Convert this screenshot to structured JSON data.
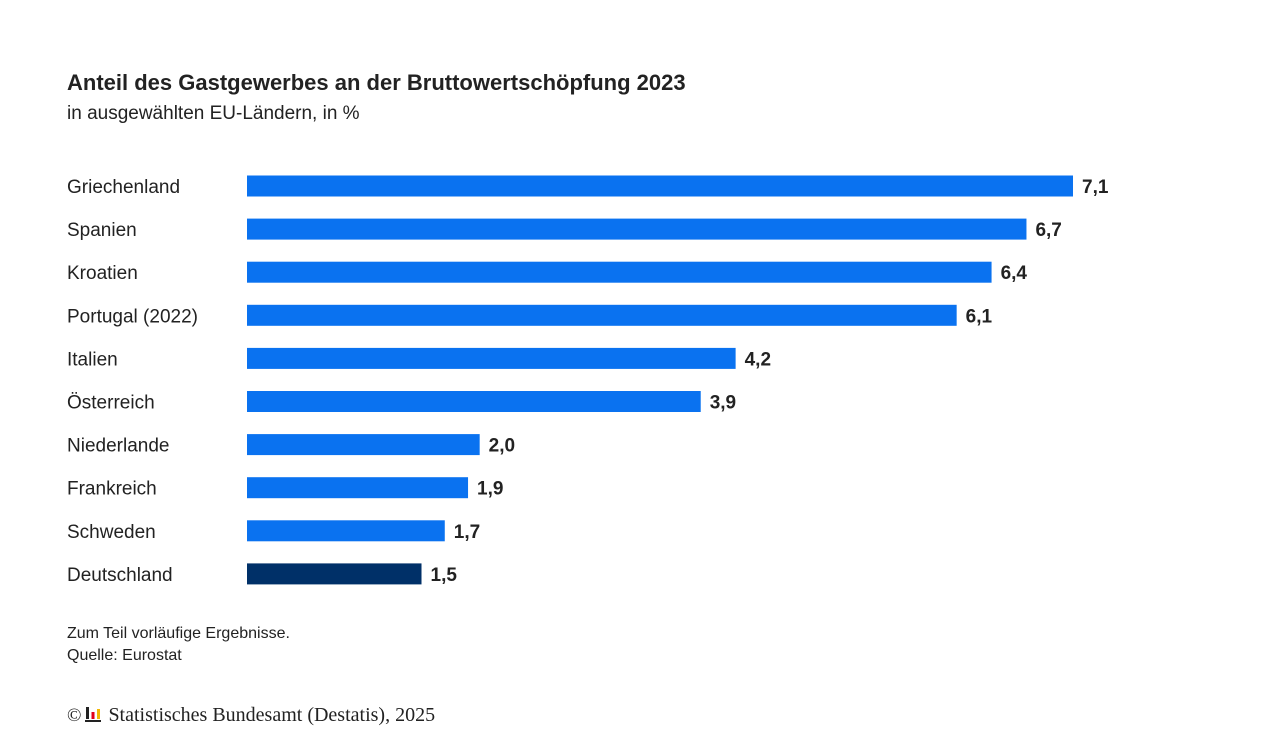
{
  "chart_data": {
    "type": "bar",
    "orientation": "horizontal",
    "title": "Anteil des Gastgewerbes an der Bruttowertschöpfung 2023",
    "subtitle": "in ausgewählten EU-Ländern, in %",
    "categories": [
      "Griechenland",
      "Spanien",
      "Kroatien",
      "Portugal (2022)",
      "Italien",
      "Österreich",
      "Niederlande",
      "Frankreich",
      "Schweden",
      "Deutschland"
    ],
    "values": [
      7.1,
      6.7,
      6.4,
      6.1,
      4.2,
      3.9,
      2.0,
      1.9,
      1.7,
      1.5
    ],
    "value_labels": [
      "7,1",
      "6,7",
      "6,4",
      "6,1",
      "4,2",
      "3,9",
      "2,0",
      "1,9",
      "1,7",
      "1,5"
    ],
    "highlight_category": "Deutschland",
    "xlim": [
      0,
      7.1
    ],
    "grid": false,
    "colors": {
      "bar": "#0a72f0",
      "highlight": "#003068",
      "label": "#222222"
    }
  },
  "notes": {
    "line1": "Zum Teil vorläufige Ergebnisse.",
    "line2": "Quelle: Eurostat"
  },
  "footer": {
    "copyright_symbol": "©",
    "text": "Statistisches Bundesamt (Destatis), 2025",
    "logo_icon": "destatis-logo-icon"
  }
}
